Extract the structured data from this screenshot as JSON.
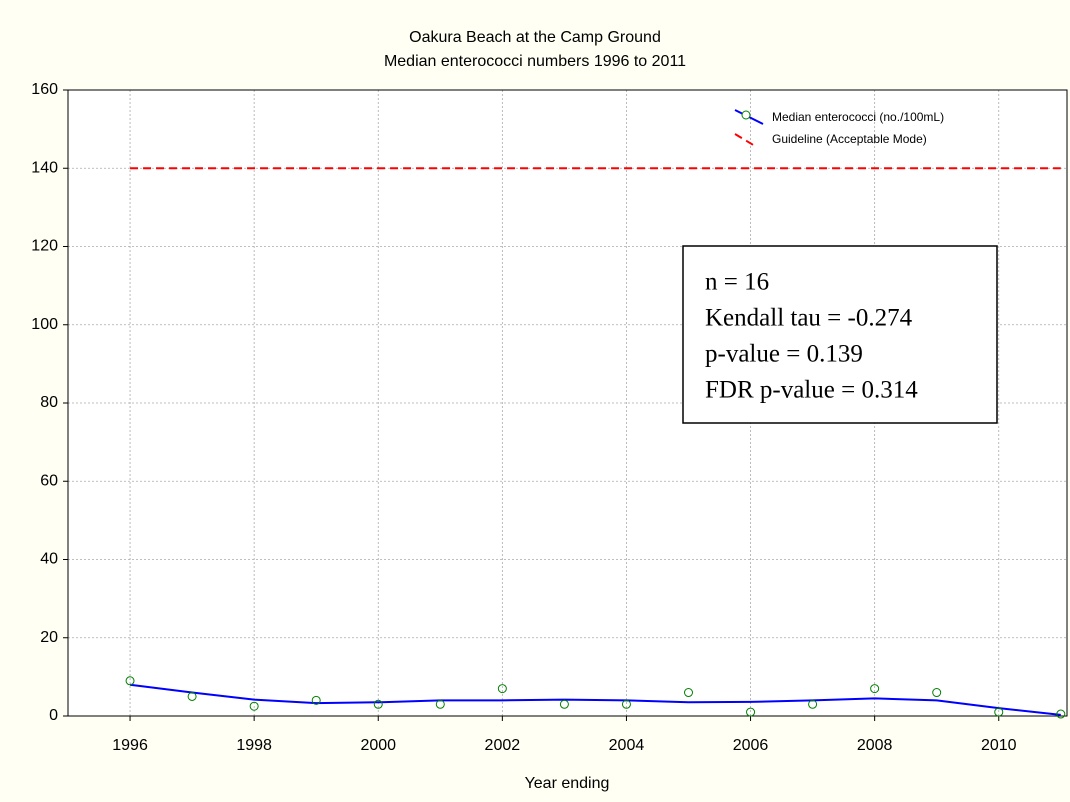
{
  "chart_data": {
    "type": "line",
    "title": "Oakura Beach at the Camp Ground",
    "subtitle": "Median enterococci numbers 1996 to 2011",
    "xlabel": "Year ending",
    "xlim": [
      1995,
      2011.1
    ],
    "xticks": [
      1996,
      1998,
      2000,
      2002,
      2004,
      2006,
      2008,
      2010
    ],
    "ylim": [
      0,
      160
    ],
    "yticks": [
      0,
      20,
      40,
      60,
      80,
      100,
      120,
      140,
      160
    ],
    "grid": true,
    "legend": "upper right",
    "series": [
      {
        "name": "Median enterococci (no./100mL)",
        "color": "#0000ff",
        "marker_color": "#008000",
        "x": [
          1996,
          1997,
          1998,
          1999,
          2000,
          2001,
          2002,
          2003,
          2004,
          2005,
          2006,
          2007,
          2008,
          2009,
          2010,
          2011
        ],
        "values": [
          9,
          5,
          2.5,
          4,
          3,
          3,
          7,
          3,
          3,
          6,
          1,
          3,
          7,
          6,
          1,
          0.5
        ],
        "smooth": [
          8,
          6,
          4.2,
          3.3,
          3.5,
          4,
          4,
          4.2,
          4,
          3.5,
          3.6,
          4,
          4.5,
          4,
          2,
          0.3
        ]
      },
      {
        "name": "Guideline (Acceptable Mode)",
        "color": "#ff0000",
        "dashed": true,
        "x": [
          1996,
          2011
        ],
        "values": [
          140,
          140
        ]
      }
    ],
    "annotations": [
      "n = 16",
      "Kendall tau = -0.274",
      "p-value = 0.139",
      "FDR p-value = 0.314"
    ]
  }
}
